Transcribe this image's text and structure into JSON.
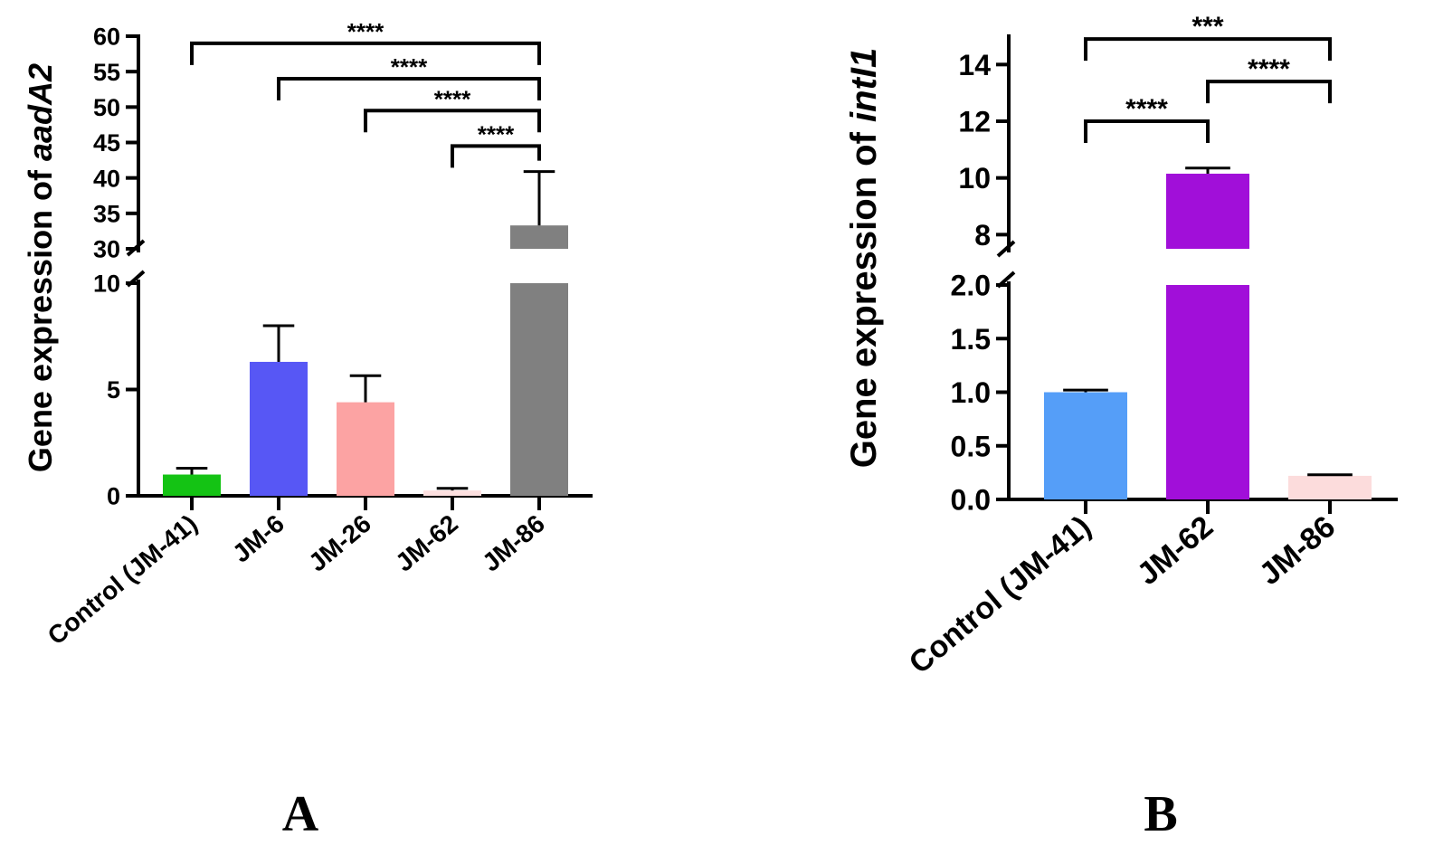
{
  "figure_labels": {
    "panel_a": "A",
    "panel_b": "B"
  },
  "chart_data": [
    {
      "id": "A",
      "type": "bar",
      "title": "",
      "xlabel": "",
      "ylabel_prefix": "Gene expression of ",
      "ylabel_gene": "aadA2",
      "y_axis_break": {
        "lower": [
          0,
          10
        ],
        "upper": [
          30,
          60
        ]
      },
      "lower_ticks": [
        "0",
        "5",
        "10"
      ],
      "upper_ticks": [
        "30",
        "35",
        "40",
        "45",
        "50",
        "55",
        "60"
      ],
      "categories": [
        "Control (JM-41)",
        "JM-6",
        "JM-26",
        "JM-62",
        "JM-86"
      ],
      "values": [
        1.0,
        6.3,
        4.4,
        0.25,
        33.3
      ],
      "errors": [
        0.3,
        1.7,
        1.25,
        0.1,
        7.6
      ],
      "colors": [
        "#14c314",
        "#5757f5",
        "#fca3a3",
        "#fde0e0",
        "#808080"
      ],
      "significance": [
        {
          "from": 0,
          "to": 4,
          "label": "****",
          "level": 59
        },
        {
          "from": 1,
          "to": 4,
          "label": "****",
          "level": 54
        },
        {
          "from": 2,
          "to": 4,
          "label": "****",
          "level": 49.5
        },
        {
          "from": 3,
          "to": 4,
          "label": "****",
          "level": 44.5
        }
      ]
    },
    {
      "id": "B",
      "type": "bar",
      "title": "",
      "xlabel": "",
      "ylabel_prefix": "Gene expression of ",
      "ylabel_gene": "intI1",
      "y_axis_break": {
        "lower": [
          0,
          2
        ],
        "upper": [
          7.5,
          15
        ]
      },
      "lower_ticks": [
        "0.0",
        "0.5",
        "1.0",
        "1.5",
        "2.0"
      ],
      "upper_ticks": [
        "8",
        "10",
        "12",
        "14"
      ],
      "categories": [
        "Control (JM-41)",
        "JM-62",
        "JM-86"
      ],
      "values": [
        1.0,
        10.15,
        0.22
      ],
      "errors": [
        0.02,
        0.2,
        0.01
      ],
      "colors": [
        "#559ef8",
        "#a10fd9",
        "#fcdcdc"
      ],
      "significance": [
        {
          "from": 0,
          "to": 2,
          "label": "***",
          "level": 14.9
        },
        {
          "from": 1,
          "to": 2,
          "label": "****",
          "level": 13.4
        },
        {
          "from": 0,
          "to": 1,
          "label": "****",
          "level": 12.0
        }
      ]
    }
  ]
}
